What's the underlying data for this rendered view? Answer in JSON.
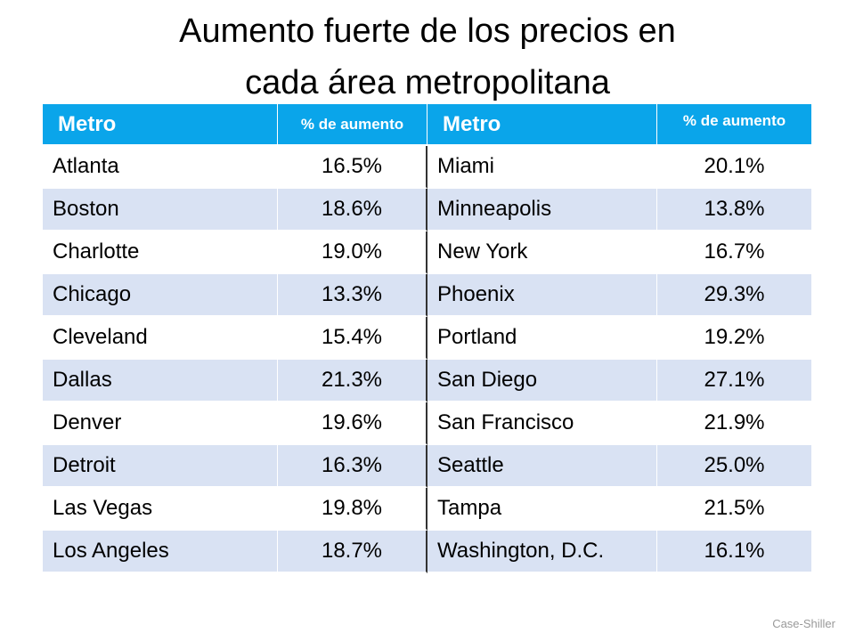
{
  "title": {
    "lines": [
      "Aumento fuerte de los precios en",
      "cada área metropolitana"
    ]
  },
  "table": {
    "headers": [
      "Metro",
      "% de aumento",
      "Metro",
      "% de aumento"
    ],
    "rows": [
      [
        "Atlanta",
        "16.5%",
        "Miami",
        "20.1%"
      ],
      [
        "Boston",
        "18.6%",
        "Minneapolis",
        "13.8%"
      ],
      [
        "Charlotte",
        "19.0%",
        "New York",
        "16.7%"
      ],
      [
        "Chicago",
        "13.3%",
        "Phoenix",
        "29.3%"
      ],
      [
        "Cleveland",
        "15.4%",
        "Portland",
        "19.2%"
      ],
      [
        "Dallas",
        "21.3%",
        "San Diego",
        "27.1%"
      ],
      [
        "Denver",
        "19.6%",
        "San Francisco",
        "21.9%"
      ],
      [
        "Detroit",
        "16.3%",
        "Seattle",
        "25.0%"
      ],
      [
        "Las Vegas",
        "19.8%",
        "Tampa",
        "21.5%"
      ],
      [
        "Los Angeles",
        "18.7%",
        "Washington, D.C.",
        "16.1%"
      ]
    ]
  },
  "source": "Case-Shiller"
}
